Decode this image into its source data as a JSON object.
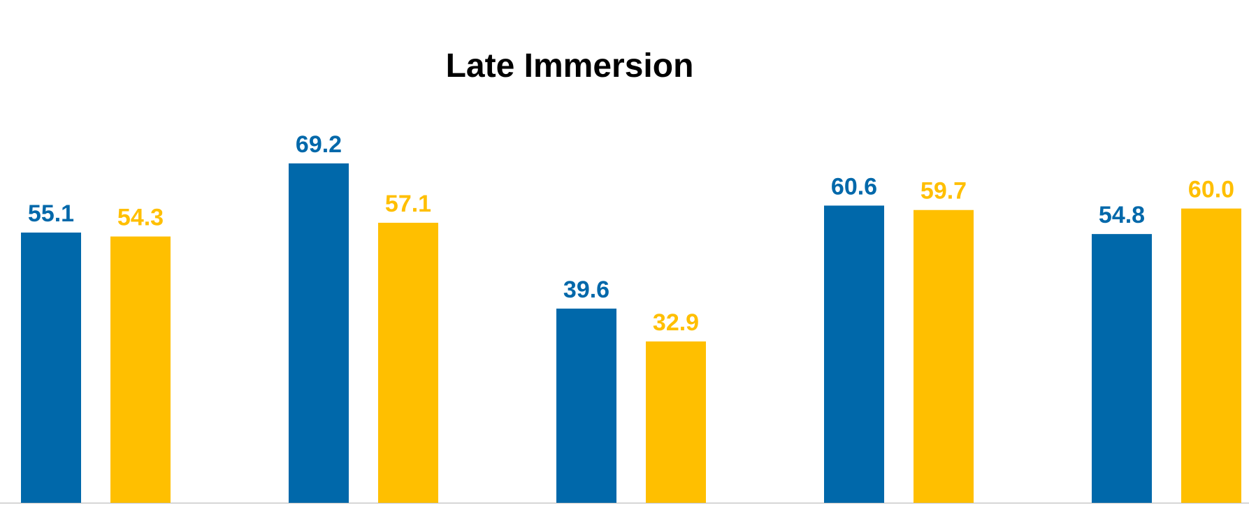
{
  "chart_data": {
    "type": "bar",
    "title": "Late Immersion",
    "categories": [
      "",
      "",
      "",
      "",
      ""
    ],
    "series": [
      {
        "values": [
          55.1,
          69.2,
          39.6,
          60.6,
          54.8
        ],
        "color": "#0068AA"
      },
      {
        "values": [
          54.3,
          57.1,
          32.9,
          59.7,
          60.0
        ],
        "color": "#FFBF00"
      }
    ],
    "ylim": [
      0,
      85
    ],
    "grid": false,
    "legend": "none",
    "data_labels": true
  }
}
